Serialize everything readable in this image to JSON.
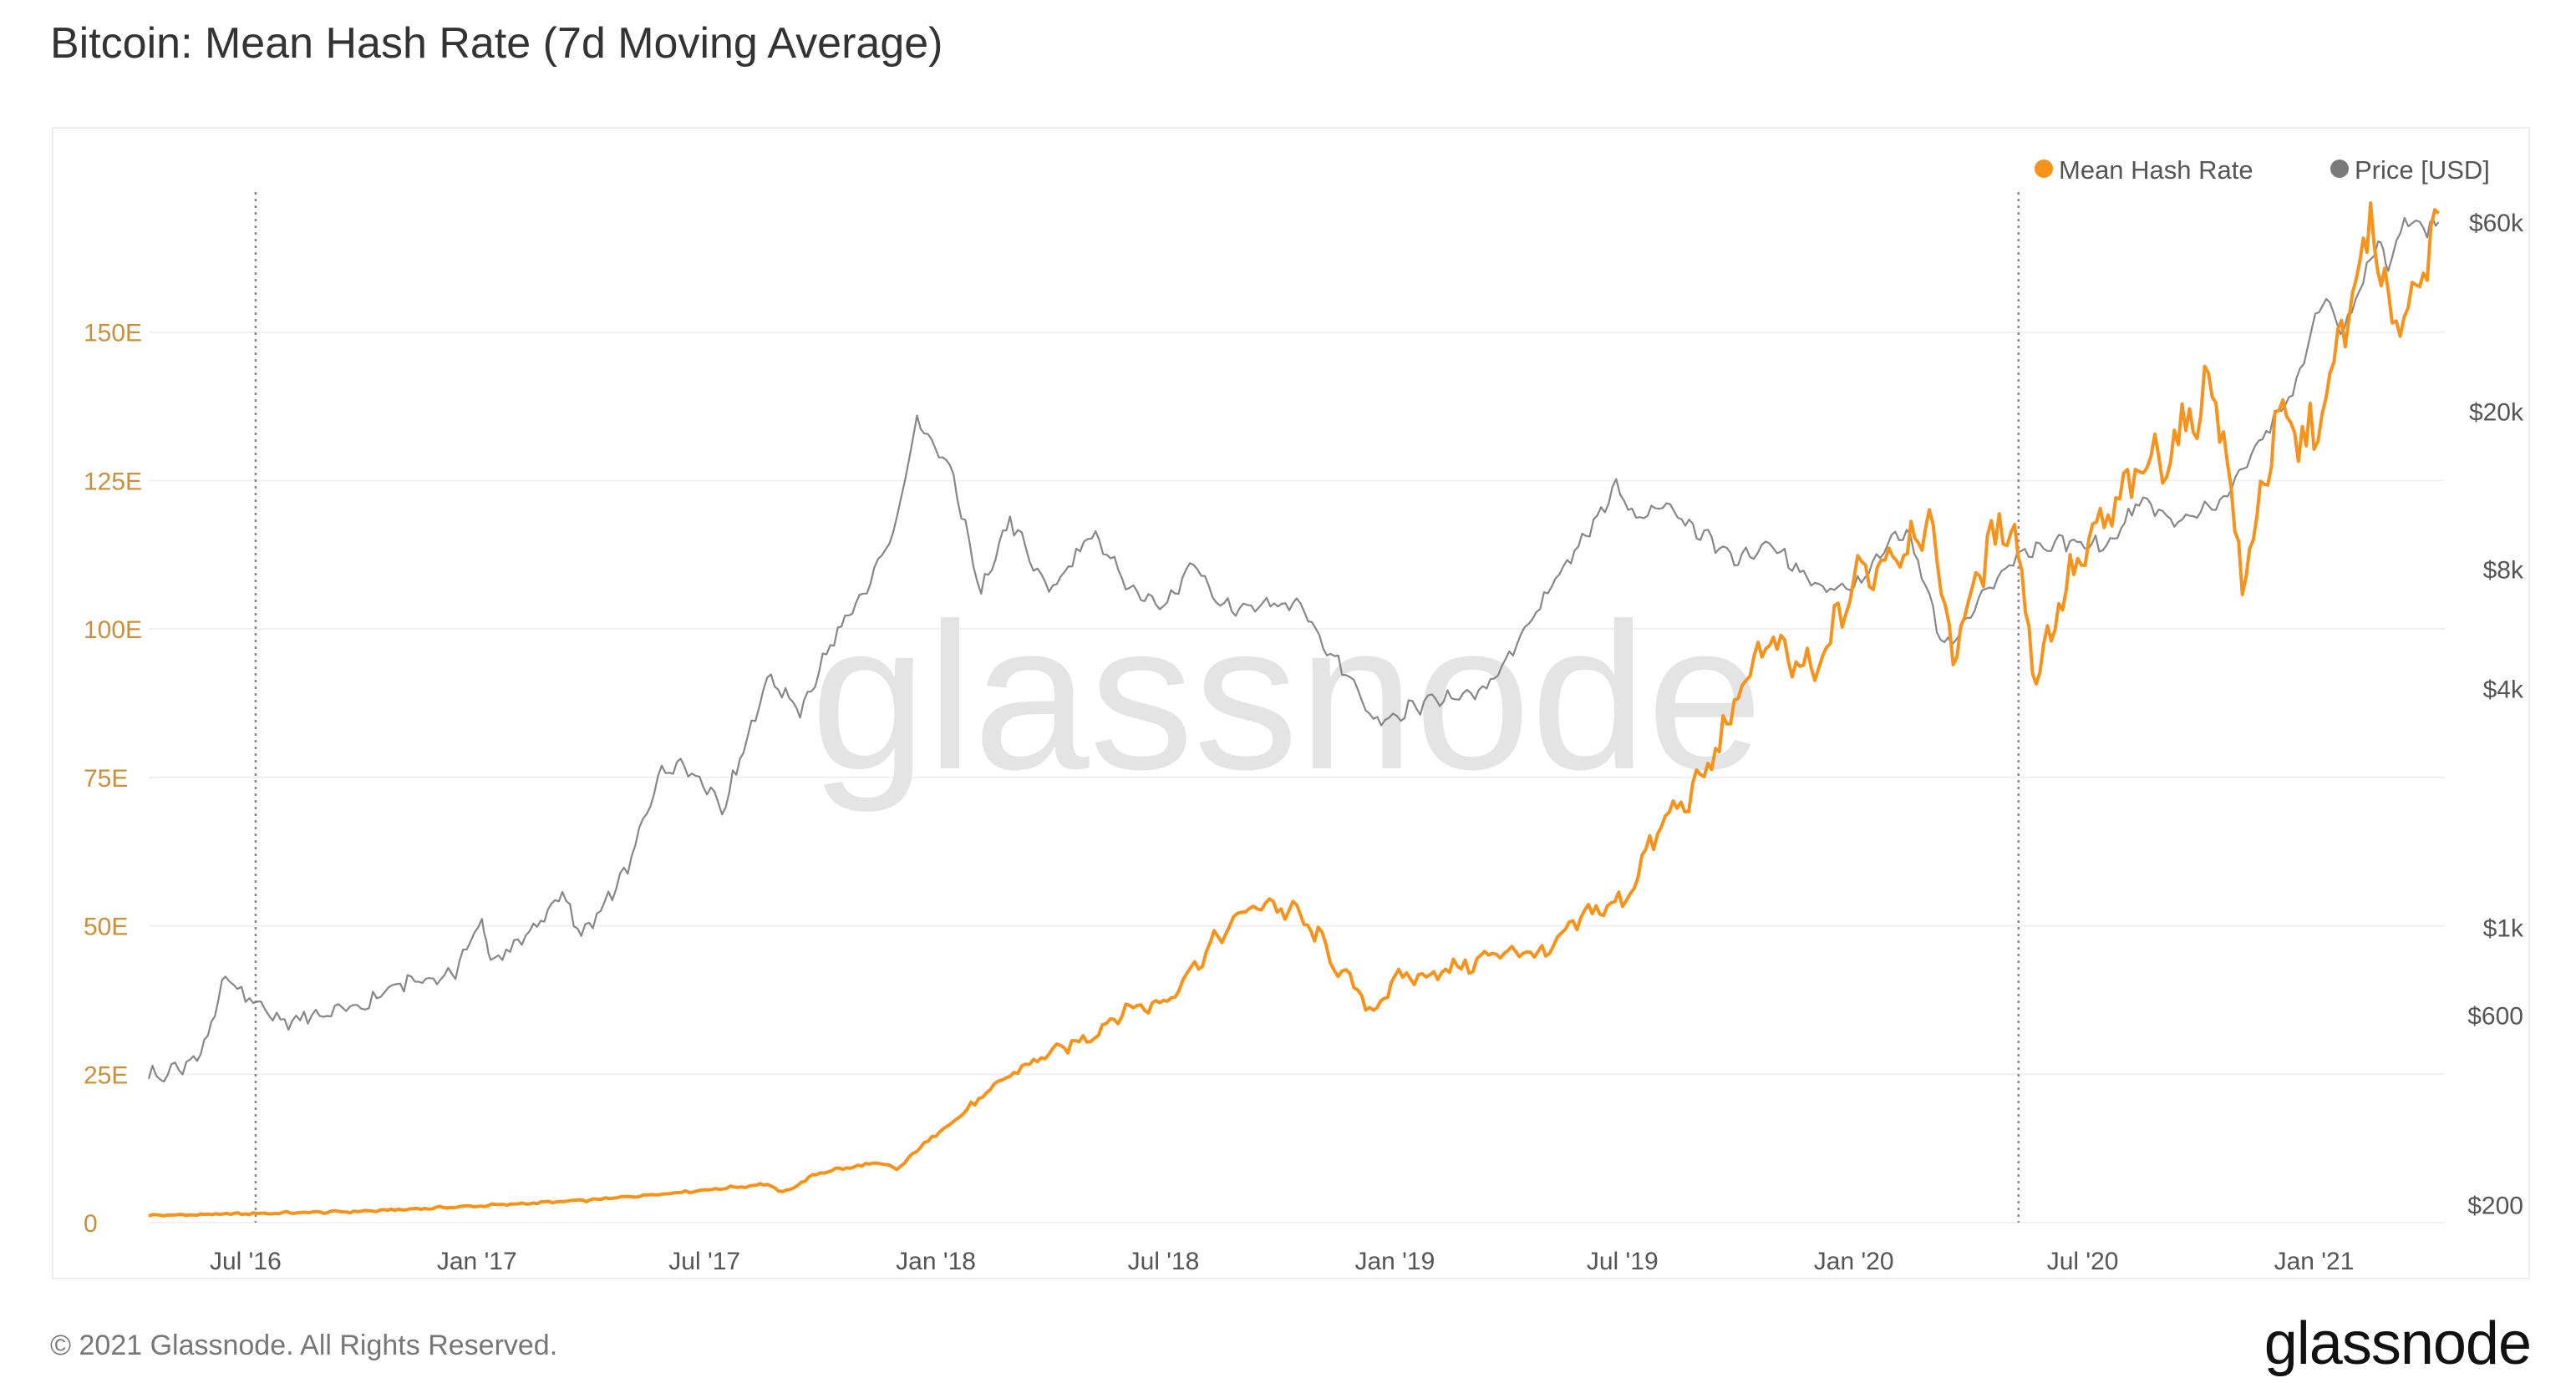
{
  "title": "Bitcoin: Mean Hash Rate (7d Moving Average)",
  "watermark": "glassnode",
  "footer": {
    "copyright": "© 2021 Glassnode. All Rights Reserved.",
    "logo": "glassnode"
  },
  "colors": {
    "hash_rate": "#f7931a",
    "price": "#7a7a7a",
    "left_axis_text": "#c8903c",
    "grid": "#f0f0f0"
  },
  "chart_data": {
    "type": "line",
    "title": "Bitcoin: Mean Hash Rate (7d Moving Average)",
    "legend": {
      "position": "top-right",
      "entries": [
        "Mean Hash Rate",
        "Price [USD]"
      ]
    },
    "x_ticks": [
      {
        "label": "Jul '16",
        "date": "2016-07-01"
      },
      {
        "label": "Jan '17",
        "date": "2017-01-01"
      },
      {
        "label": "Jul '17",
        "date": "2017-07-01"
      },
      {
        "label": "Jan '18",
        "date": "2018-01-01"
      },
      {
        "label": "Jul '18",
        "date": "2018-07-01"
      },
      {
        "label": "Jan '19",
        "date": "2019-01-01"
      },
      {
        "label": "Jul '19",
        "date": "2019-07-01"
      },
      {
        "label": "Jan '20",
        "date": "2020-01-01"
      },
      {
        "label": "Jul '20",
        "date": "2020-07-01"
      },
      {
        "label": "Jan '21",
        "date": "2021-01-01"
      }
    ],
    "xlim": [
      "2016-04-15",
      "2021-04-15"
    ],
    "y_left": {
      "label": "",
      "ticks": [
        "0",
        "25E",
        "50E",
        "75E",
        "100E",
        "125E",
        "150E"
      ],
      "tick_values": [
        0,
        25,
        50,
        75,
        100,
        125,
        150
      ],
      "ylim": [
        0,
        175
      ]
    },
    "y_right": {
      "label": "",
      "scale": "log",
      "ticks": [
        "$200",
        "$600",
        "$1k",
        "$4k",
        "$8k",
        "$20k",
        "$60k"
      ],
      "tick_values": [
        200,
        600,
        1000,
        4000,
        8000,
        20000,
        60000
      ],
      "ylim": [
        180,
        75000
      ]
    },
    "vlines": [
      "2016-07-09",
      "2020-05-11"
    ],
    "series": [
      {
        "name": "Mean Hash Rate",
        "axis": "left",
        "color": "#f7931a",
        "points": [
          [
            "2016-04-15",
            1.2
          ],
          [
            "2016-07-01",
            1.5
          ],
          [
            "2016-10-01",
            1.9
          ],
          [
            "2017-01-01",
            2.8
          ],
          [
            "2017-04-01",
            3.8
          ],
          [
            "2017-07-01",
            5.5
          ],
          [
            "2017-08-20",
            6.5
          ],
          [
            "2017-09-01",
            5.0
          ],
          [
            "2017-10-01",
            8.5
          ],
          [
            "2017-11-15",
            10.0
          ],
          [
            "2017-12-01",
            9.0
          ],
          [
            "2018-01-01",
            15.0
          ],
          [
            "2018-02-01",
            20.0
          ],
          [
            "2018-03-01",
            25.0
          ],
          [
            "2018-04-01",
            28.5
          ],
          [
            "2018-05-01",
            31.0
          ],
          [
            "2018-06-01",
            36.0
          ],
          [
            "2018-07-01",
            37.0
          ],
          [
            "2018-08-01",
            45.0
          ],
          [
            "2018-09-01",
            52.0
          ],
          [
            "2018-09-20",
            54.0
          ],
          [
            "2018-10-15",
            52.0
          ],
          [
            "2018-11-01",
            48.0
          ],
          [
            "2018-11-20",
            42.0
          ],
          [
            "2018-12-15",
            35.5
          ],
          [
            "2019-01-01",
            41.0
          ],
          [
            "2019-02-01",
            42.0
          ],
          [
            "2019-03-01",
            43.5
          ],
          [
            "2019-04-01",
            46.0
          ],
          [
            "2019-05-01",
            45.0
          ],
          [
            "2019-06-01",
            52.0
          ],
          [
            "2019-07-01",
            54.0
          ],
          [
            "2019-08-01",
            67.0
          ],
          [
            "2019-09-01",
            74.0
          ],
          [
            "2019-10-01",
            88.0
          ],
          [
            "2019-10-20",
            98.0
          ],
          [
            "2019-11-01",
            96.0
          ],
          [
            "2019-12-01",
            92.0
          ],
          [
            "2020-01-01",
            108.0
          ],
          [
            "2020-02-01",
            113.0
          ],
          [
            "2020-03-01",
            118.0
          ],
          [
            "2020-03-20",
            96.0
          ],
          [
            "2020-04-10",
            110.0
          ],
          [
            "2020-05-05",
            120.0
          ],
          [
            "2020-05-25",
            92.0
          ],
          [
            "2020-06-15",
            106.0
          ],
          [
            "2020-07-15",
            117.0
          ],
          [
            "2020-08-15",
            126.0
          ],
          [
            "2020-09-15",
            132.0
          ],
          [
            "2020-10-15",
            142.0
          ],
          [
            "2020-11-05",
            107.0
          ],
          [
            "2020-12-01",
            134.0
          ],
          [
            "2021-01-01",
            132.0
          ],
          [
            "2021-01-20",
            146.0
          ],
          [
            "2021-02-15",
            168.0
          ],
          [
            "2021-03-01",
            152.0
          ],
          [
            "2021-03-20",
            156.0
          ],
          [
            "2021-04-10",
            170.0
          ]
        ]
      },
      {
        "name": "Price [USD]",
        "axis": "right",
        "color": "#7a7a7a",
        "points": [
          [
            "2016-04-15",
            420
          ],
          [
            "2016-05-15",
            450
          ],
          [
            "2016-06-01",
            520
          ],
          [
            "2016-06-15",
            750
          ],
          [
            "2016-07-01",
            660
          ],
          [
            "2016-08-01",
            580
          ],
          [
            "2016-09-01",
            600
          ],
          [
            "2016-10-01",
            630
          ],
          [
            "2016-11-01",
            720
          ],
          [
            "2016-12-15",
            780
          ],
          [
            "2017-01-05",
            1050
          ],
          [
            "2017-01-12",
            800
          ],
          [
            "2017-02-15",
            1000
          ],
          [
            "2017-03-10",
            1200
          ],
          [
            "2017-03-25",
            950
          ],
          [
            "2017-05-01",
            1400
          ],
          [
            "2017-05-25",
            2400
          ],
          [
            "2017-06-15",
            2600
          ],
          [
            "2017-07-15",
            2000
          ],
          [
            "2017-08-01",
            2800
          ],
          [
            "2017-08-20",
            4200
          ],
          [
            "2017-09-15",
            3500
          ],
          [
            "2017-10-15",
            5600
          ],
          [
            "2017-11-10",
            7400
          ],
          [
            "2017-12-01",
            10500
          ],
          [
            "2017-12-17",
            19500
          ],
          [
            "2018-01-15",
            13500
          ],
          [
            "2018-02-06",
            7000
          ],
          [
            "2018-03-01",
            10700
          ],
          [
            "2018-04-01",
            7000
          ],
          [
            "2018-05-05",
            9800
          ],
          [
            "2018-06-01",
            7500
          ],
          [
            "2018-07-01",
            6400
          ],
          [
            "2018-07-25",
            8200
          ],
          [
            "2018-08-15",
            6400
          ],
          [
            "2018-09-15",
            6500
          ],
          [
            "2018-10-15",
            6500
          ],
          [
            "2018-11-20",
            4500
          ],
          [
            "2018-12-15",
            3300
          ],
          [
            "2019-01-15",
            3600
          ],
          [
            "2019-02-15",
            3800
          ],
          [
            "2019-03-15",
            4000
          ],
          [
            "2019-04-05",
            5000
          ],
          [
            "2019-05-15",
            8000
          ],
          [
            "2019-06-26",
            12800
          ],
          [
            "2019-07-15",
            10500
          ],
          [
            "2019-08-05",
            11800
          ],
          [
            "2019-09-01",
            9800
          ],
          [
            "2019-10-01",
            8300
          ],
          [
            "2019-10-26",
            9400
          ],
          [
            "2019-12-01",
            7300
          ],
          [
            "2020-01-01",
            7200
          ],
          [
            "2020-02-12",
            10300
          ],
          [
            "2020-03-13",
            5000
          ],
          [
            "2020-04-15",
            7000
          ],
          [
            "2020-05-10",
            8800
          ],
          [
            "2020-06-15",
            9400
          ],
          [
            "2020-07-20",
            9200
          ],
          [
            "2020-08-15",
            11800
          ],
          [
            "2020-09-15",
            10700
          ],
          [
            "2020-10-15",
            11500
          ],
          [
            "2020-11-15",
            16000
          ],
          [
            "2020-12-15",
            22000
          ],
          [
            "2021-01-08",
            39000
          ],
          [
            "2021-01-25",
            32000
          ],
          [
            "2021-02-21",
            55000
          ],
          [
            "2021-03-01",
            46000
          ],
          [
            "2021-03-14",
            61000
          ],
          [
            "2021-04-01",
            58000
          ],
          [
            "2021-04-10",
            60000
          ]
        ]
      }
    ]
  }
}
